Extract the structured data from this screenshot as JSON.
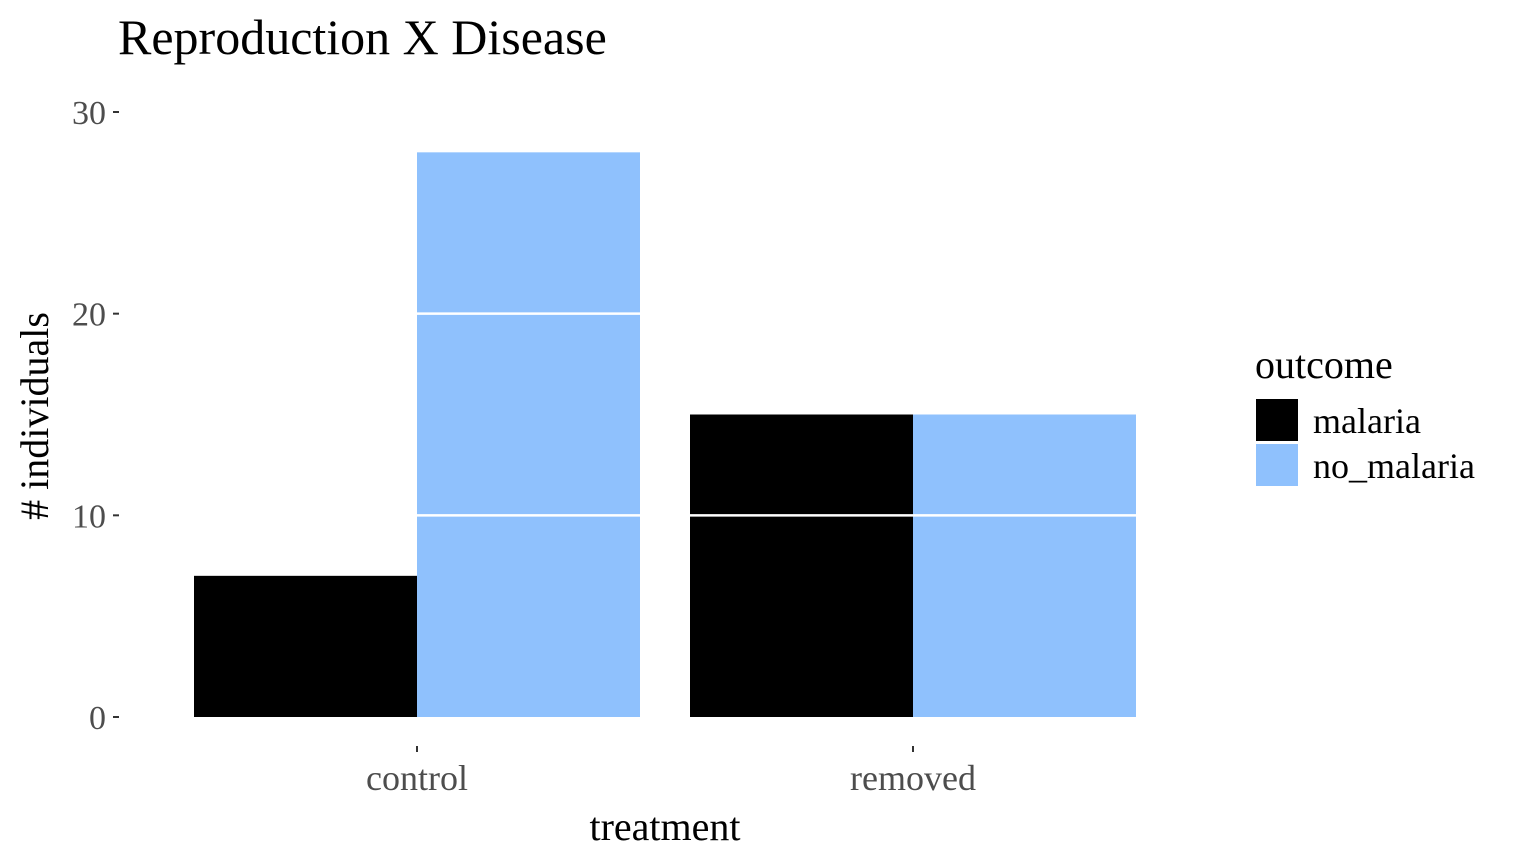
{
  "chart_data": {
    "type": "bar",
    "title": "Reproduction X Disease",
    "xlabel": "treatment",
    "ylabel": "# individuals",
    "categories": [
      "control",
      "removed"
    ],
    "ylim": [
      0,
      30
    ],
    "yticks": [
      0,
      10,
      20,
      30
    ],
    "grid": false,
    "legend": {
      "title": "outcome",
      "position": "right",
      "entries": [
        "malaria",
        "no_malaria"
      ]
    },
    "series": [
      {
        "name": "malaria",
        "color": "#000000",
        "values": [
          7,
          15
        ],
        "segment_breaks": [
          [],
          [
            10
          ]
        ]
      },
      {
        "name": "no_malaria",
        "color": "#8fc1fd",
        "values": [
          28,
          15
        ],
        "segment_breaks": [
          [
            10,
            20
          ],
          [
            10
          ]
        ]
      }
    ]
  }
}
